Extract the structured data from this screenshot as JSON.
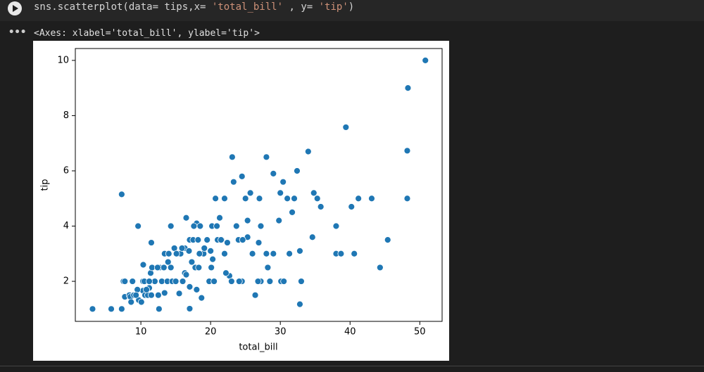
{
  "code": [
    "sns.scatterplot(data= tips,x= ",
    "'total_bill'",
    " , y= ",
    "'tip'",
    ")"
  ],
  "output_text": "<Axes: xlabel='total_bill', ylabel='tip'>",
  "chart_data": {
    "type": "scatter",
    "x_label": "total_bill",
    "y_label": "tip",
    "color": "#1f77b4",
    "xlim": [
      0.6,
      53.2
    ],
    "ylim": [
      0.55,
      10.43
    ],
    "xticks": [
      10,
      20,
      30,
      40,
      50
    ],
    "yticks": [
      2,
      4,
      6,
      8,
      10
    ],
    "x": [
      3.07,
      5.75,
      7.25,
      7.25,
      7.5,
      7.7,
      8.35,
      8.5,
      8.8,
      9,
      9.6,
      9.7,
      10.07,
      10.3,
      10.3,
      10.5,
      10.6,
      10.34,
      11,
      11.2,
      11.4,
      11.5,
      11.5,
      11.6,
      12,
      12.5,
      12.6,
      12.7,
      13,
      13.3,
      13.4,
      13.4,
      13.8,
      14,
      14.3,
      14.5,
      14.8,
      15,
      15.4,
      15.5,
      15.7,
      16,
      16.3,
      16.5,
      16.3,
      16.5,
      17,
      17,
      17.3,
      17,
      17.5,
      17.8,
      18,
      18,
      18.2,
      18.3,
      18.5,
      18.7,
      19,
      19.5,
      19.8,
      20,
      20.2,
      20.3,
      20.5,
      20.7,
      21,
      21.3,
      21.6,
      22,
      22.4,
      22.7,
      23,
      23.1,
      23.3,
      23.7,
      24,
      24.5,
      24.5,
      25,
      25.3,
      25.7,
      25.3,
      26,
      26.4,
      26.9,
      27.2,
      27.2,
      28,
      28,
      28.2,
      28.5,
      29,
      29,
      29.8,
      30,
      30.1,
      30.4,
      30.5,
      31,
      31.3,
      31.7,
      32,
      32.4,
      32.8,
      32.8,
      34,
      34.6,
      34.8,
      35.3,
      35.8,
      38,
      38,
      38.7,
      39.4,
      40.2,
      40.6,
      41.2,
      43.1,
      44.3,
      45.4,
      48.2,
      48.2,
      48.3,
      50.8,
      7.7,
      9.5,
      10.8,
      12.4,
      14.3,
      15.1,
      15.9,
      16.9,
      19.1,
      20.9,
      22,
      22.2,
      24.1,
      26.8,
      21.5,
      27,
      33,
      24.6,
      20.1,
      17.6,
      18.4,
      13.9,
      11.2,
      9.3,
      8.6
    ],
    "values": [
      1,
      1,
      1,
      5.15,
      2,
      1.44,
      1.5,
      1.44,
      2,
      1.5,
      4,
      1.32,
      1.25,
      2,
      1.66,
      2,
      1.5,
      2.6,
      1.5,
      1.76,
      2.3,
      1.5,
      3.4,
      2.5,
      2,
      1.5,
      1,
      2.5,
      2,
      2.5,
      3,
      1.58,
      2,
      3,
      4,
      2,
      3.2,
      2,
      3,
      1.56,
      3,
      2,
      3.2,
      4.3,
      2.3,
      2.24,
      3.5,
      1.8,
      2.7,
      1.01,
      3.5,
      2.5,
      4.1,
      1.7,
      3.5,
      2.5,
      4,
      1.4,
      3,
      3.5,
      2,
      3.1,
      4,
      2.8,
      2,
      5,
      3.5,
      4.3,
      3.5,
      5,
      3.4,
      2.2,
      2,
      6.5,
      5.6,
      4,
      3.5,
      2,
      5.8,
      5,
      4.2,
      5.2,
      3.6,
      3,
      1.5,
      3.4,
      4,
      2,
      6.5,
      3,
      2.5,
      2,
      3,
      5.9,
      4.2,
      5.2,
      2,
      5.6,
      2,
      5,
      3,
      4.5,
      5,
      6,
      3.1,
      1.17,
      6.7,
      3.6,
      5.2,
      5,
      4.7,
      3,
      4,
      3,
      7.58,
      4.7,
      3,
      5,
      5,
      2.5,
      3.5,
      5,
      6.73,
      9,
      10,
      2,
      1.7,
      1.7,
      2.5,
      2.5,
      3,
      3.2,
      3.1,
      3.2,
      4,
      3,
      2.3,
      2,
      2,
      3.5,
      5,
      2,
      3.5,
      2.5,
      4,
      3,
      2.7,
      2,
      1.5,
      1.25
    ]
  }
}
